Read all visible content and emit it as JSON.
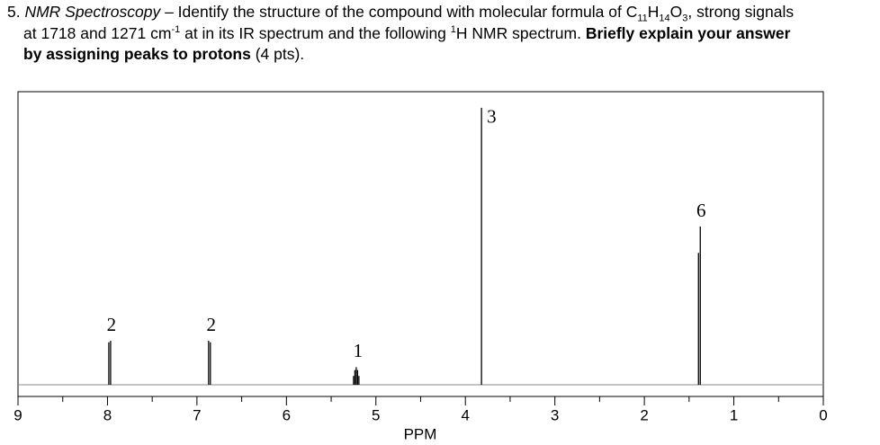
{
  "question": {
    "lines": [
      [
        {
          "text": "5. "
        },
        {
          "text": "NMR Spectroscopy",
          "style": "italic"
        },
        {
          "text": " – Identify the structure of the compound with molecular formula of C"
        },
        {
          "text": "11",
          "style": "sub"
        },
        {
          "text": "H"
        },
        {
          "text": "14",
          "style": "sub"
        },
        {
          "text": "O"
        },
        {
          "text": "3",
          "style": "sub"
        },
        {
          "text": ", strong signals"
        }
      ],
      [
        {
          "text": "at 1718 and 1271 cm"
        },
        {
          "text": "-1",
          "style": "sup"
        },
        {
          "text": " at in its IR spectrum and the following "
        },
        {
          "text": "1",
          "style": "sup"
        },
        {
          "text": "H NMR spectrum. "
        },
        {
          "text": "Briefly explain your answer",
          "style": "bold"
        }
      ],
      [
        {
          "text": "by assigning peaks to protons",
          "style": "bold"
        },
        {
          "text": " (4 pts)."
        }
      ]
    ]
  },
  "chart_data": {
    "type": "spectrum",
    "x_label": "PPM",
    "color": "#000000",
    "xlim": [
      9,
      0
    ],
    "xticks": [
      9,
      8,
      7,
      6,
      5,
      4,
      3,
      2,
      1,
      0
    ],
    "xminorticks": [
      8.5,
      7.5,
      6.5,
      5.5,
      4.5,
      3.5,
      2.5,
      1.5,
      0.5
    ],
    "ylim": [
      -4,
      100
    ],
    "signals": [
      {
        "label": "2",
        "peaks": {
          "x": [
            7.985,
            7.965
          ],
          "y": [
            14.5,
            15
          ]
        }
      },
      {
        "label": "2",
        "peaks": {
          "x": [
            6.87,
            6.85
          ],
          "y": [
            15,
            14.5
          ]
        }
      },
      {
        "label": "1",
        "peaks": {
          "x": [
            5.25,
            5.235,
            5.22,
            5.205,
            5.19
          ],
          "y": [
            3,
            5,
            6,
            5,
            3
          ]
        }
      },
      {
        "label": "3",
        "peaks": {
          "x": [
            3.82
          ],
          "y": [
            94.5
          ]
        }
      },
      {
        "label": "6",
        "peaks": {
          "x": [
            1.395,
            1.375
          ],
          "y": [
            45,
            54
          ]
        }
      }
    ]
  }
}
